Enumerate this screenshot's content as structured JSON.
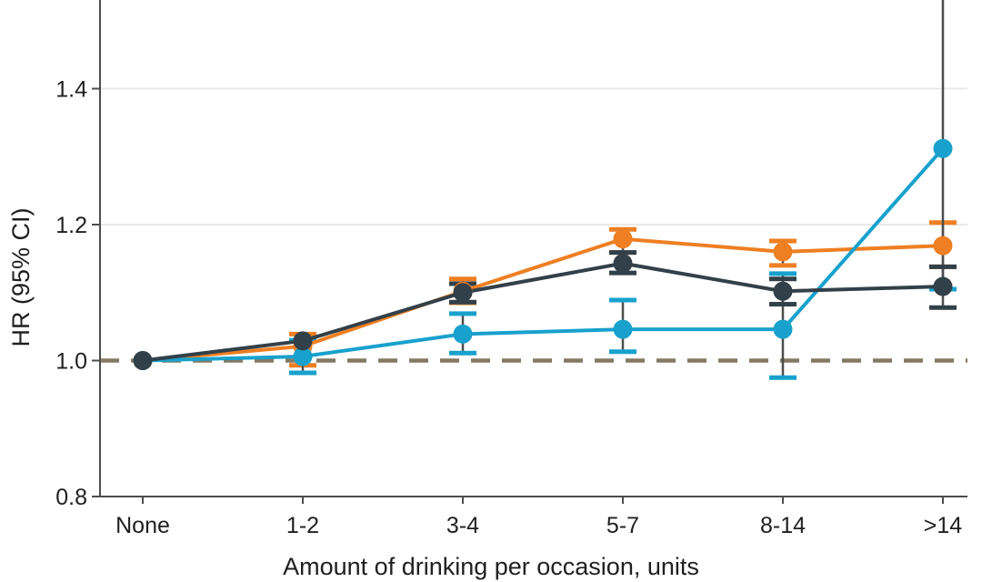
{
  "figure": {
    "title": "",
    "xlabel": "Amount of drinking per occasion, units",
    "ylabel": "HR (95% CI)"
  },
  "chart_data": {
    "type": "line",
    "subtype": "point-estimates-with-95ci-error-bars",
    "categories": [
      "None",
      "1-2",
      "3-4",
      "5-7",
      "8-14",
      ">14"
    ],
    "series": [
      {
        "name": "orange-series",
        "color": "#EE7F22",
        "values": [
          1.0,
          1.021,
          1.102,
          1.179,
          1.16,
          1.169
        ],
        "ci_low": [
          null,
          0.993,
          1.085,
          1.159,
          1.14,
          1.138
        ],
        "ci_high": [
          null,
          1.039,
          1.12,
          1.193,
          1.176,
          1.203
        ]
      },
      {
        "name": "cyan-series",
        "color": "#18A1CD",
        "values": [
          1.0,
          1.006,
          1.039,
          1.046,
          1.046,
          1.312
        ],
        "ci_low": [
          null,
          0.982,
          1.011,
          1.013,
          0.975,
          1.105
        ],
        "ci_high": [
          null,
          1.03,
          1.069,
          1.089,
          1.128,
          null
        ]
      },
      {
        "name": "dark-series",
        "color": "#324049",
        "values": [
          1.0,
          1.029,
          1.1,
          1.143,
          1.102,
          1.109
        ],
        "ci_low": [
          null,
          null,
          1.086,
          1.129,
          1.083,
          1.078
        ],
        "ci_high": [
          null,
          null,
          1.113,
          1.159,
          1.12,
          1.138
        ]
      }
    ],
    "reference_line": {
      "y": 1.0,
      "style": "dashed",
      "color": "#837965"
    },
    "title": "",
    "xlabel": "Amount of drinking per occasion, units",
    "ylabel": "HR (95% CI)",
    "yticks": [
      0.8,
      1.0,
      1.2,
      1.4
    ],
    "y_tick_labels": [
      "0.8",
      "1.0",
      "1.2",
      "1.4"
    ],
    "ylim_visible": [
      0.8,
      1.53
    ],
    "grid": "horizontal-light",
    "gridline_values": [
      1.2,
      1.4
    ],
    "legend": "none",
    "note": "upper CI of cyan-series at >14 extends beyond top of visible area"
  },
  "style": {
    "axis_color": "#4D4D4D",
    "grid_color": "#E9E9E9",
    "text_color": "#1F1F1F",
    "error_stem_color": "#4D4D4D"
  }
}
